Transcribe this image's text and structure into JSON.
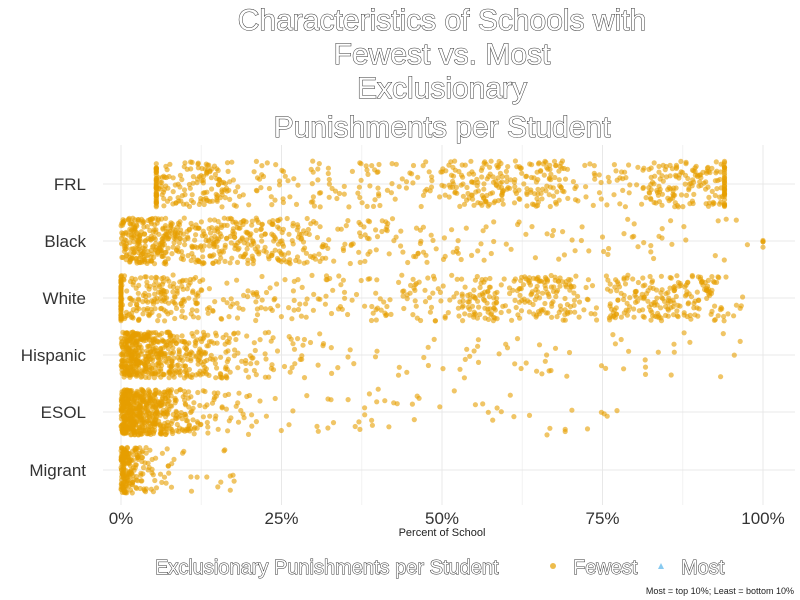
{
  "chart_data": {
    "type": "scatter",
    "title": [
      "Characteristics of Schools with",
      "Fewest vs. Most",
      "Exclusionary",
      "Punishments per Student"
    ],
    "xlabel": "Percent of School",
    "ylabel": "",
    "xlim": [
      0,
      1
    ],
    "x_ticks": [
      "0%",
      "25%",
      "50%",
      "75%",
      "100%"
    ],
    "categories": [
      "FRL",
      "Black",
      "White",
      "Hispanic",
      "ESOL",
      "Migrant"
    ],
    "grid": true,
    "legend": {
      "title": "Exclusionary Punishments per Student",
      "position": "bottom",
      "entries": [
        {
          "name": "Fewest",
          "color": "#E69F00",
          "shape": "circle"
        },
        {
          "name": "Most",
          "color": "#56B4E9",
          "shape": "triangle"
        }
      ]
    },
    "caption": "Most = top 10%; Least = bottom 10%",
    "series": [
      {
        "name": "Fewest",
        "color": "#E69F00",
        "jittered_points_by_category": {
          "FRL": {
            "n": 700,
            "min": 0.055,
            "max": 0.94,
            "modes": [
              0.08,
              0.6,
              0.9
            ]
          },
          "Black": {
            "n": 650,
            "min": 0.0,
            "max": 1.0,
            "decay": 0.18
          },
          "White": {
            "n": 800,
            "min": 0.0,
            "max": 0.97,
            "modes": [
              0.03,
              0.62,
              0.85
            ]
          },
          "Hispanic": {
            "n": 650,
            "min": 0.0,
            "max": 0.97,
            "decay": 0.07
          },
          "ESOL": {
            "n": 650,
            "min": 0.0,
            "max": 0.78,
            "decay": 0.045
          },
          "Migrant": {
            "n": 220,
            "min": 0.0,
            "max": 0.18,
            "decay": 0.015
          }
        }
      }
    ]
  }
}
